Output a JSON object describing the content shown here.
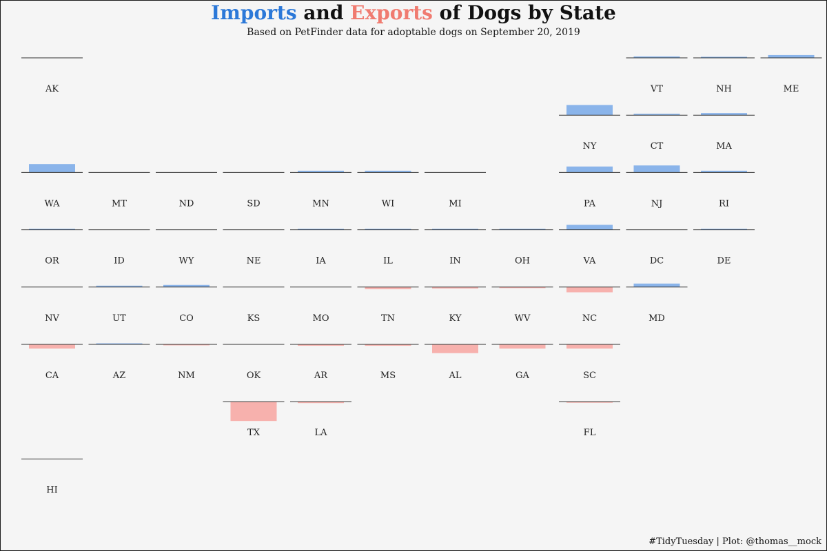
{
  "title": {
    "part1": "Imports",
    "part2": " and ",
    "part3": "Exports",
    "part4": " of Dogs by State"
  },
  "subtitle": "Based on PetFinder data for adoptable dogs on September 20, 2019",
  "caption": "#TidyTuesday | Plot: @thomas__mock",
  "colors": {
    "imports": "#8ab4ea",
    "exports": "#f7b1ad",
    "title_imports": "#2b78d8",
    "title_exports": "#f07b70",
    "baseline": "#333333",
    "background": "#f5f5f5"
  },
  "chart_data": {
    "type": "bar",
    "layout": "geofacet-us-states",
    "value_note": "net = imports minus exports (positive = imports, negative = exports)",
    "ylim": [
      -300,
      300
    ],
    "states": [
      {
        "code": "AK",
        "row": 0,
        "col": 0,
        "net": 0
      },
      {
        "code": "VT",
        "row": 0,
        "col": 9,
        "net": 4
      },
      {
        "code": "NH",
        "row": 0,
        "col": 10,
        "net": 3
      },
      {
        "code": "ME",
        "row": 0,
        "col": 11,
        "net": 8
      },
      {
        "code": "NY",
        "row": 1,
        "col": 8,
        "net": 29
      },
      {
        "code": "CT",
        "row": 1,
        "col": 9,
        "net": 4
      },
      {
        "code": "MA",
        "row": 1,
        "col": 10,
        "net": 6
      },
      {
        "code": "WA",
        "row": 2,
        "col": 0,
        "net": 24
      },
      {
        "code": "MT",
        "row": 2,
        "col": 1,
        "net": 0
      },
      {
        "code": "ND",
        "row": 2,
        "col": 2,
        "net": 0
      },
      {
        "code": "SD",
        "row": 2,
        "col": 3,
        "net": 0
      },
      {
        "code": "MN",
        "row": 2,
        "col": 4,
        "net": 5
      },
      {
        "code": "WI",
        "row": 2,
        "col": 5,
        "net": 5
      },
      {
        "code": "MI",
        "row": 2,
        "col": 6,
        "net": 0
      },
      {
        "code": "PA",
        "row": 2,
        "col": 8,
        "net": 17
      },
      {
        "code": "NJ",
        "row": 2,
        "col": 9,
        "net": 20
      },
      {
        "code": "RI",
        "row": 2,
        "col": 10,
        "net": 5
      },
      {
        "code": "OR",
        "row": 3,
        "col": 0,
        "net": 1
      },
      {
        "code": "ID",
        "row": 3,
        "col": 1,
        "net": 0
      },
      {
        "code": "WY",
        "row": 3,
        "col": 2,
        "net": 0
      },
      {
        "code": "NE",
        "row": 3,
        "col": 3,
        "net": 0
      },
      {
        "code": "IA",
        "row": 3,
        "col": 4,
        "net": 1
      },
      {
        "code": "IL",
        "row": 3,
        "col": 5,
        "net": 1
      },
      {
        "code": "IN",
        "row": 3,
        "col": 6,
        "net": 1
      },
      {
        "code": "OH",
        "row": 3,
        "col": 7,
        "net": 2
      },
      {
        "code": "VA",
        "row": 3,
        "col": 8,
        "net": 14
      },
      {
        "code": "DC",
        "row": 3,
        "col": 9,
        "net": 0
      },
      {
        "code": "DE",
        "row": 3,
        "col": 10,
        "net": 2
      },
      {
        "code": "NV",
        "row": 4,
        "col": 0,
        "net": 0
      },
      {
        "code": "UT",
        "row": 4,
        "col": 1,
        "net": 4
      },
      {
        "code": "CO",
        "row": 4,
        "col": 2,
        "net": 6
      },
      {
        "code": "KS",
        "row": 4,
        "col": 3,
        "net": 0
      },
      {
        "code": "MO",
        "row": 4,
        "col": 4,
        "net": 0
      },
      {
        "code": "TN",
        "row": 4,
        "col": 5,
        "net": -6
      },
      {
        "code": "KY",
        "row": 4,
        "col": 6,
        "net": -4
      },
      {
        "code": "WV",
        "row": 4,
        "col": 7,
        "net": -3
      },
      {
        "code": "NC",
        "row": 4,
        "col": 8,
        "net": -15
      },
      {
        "code": "MD",
        "row": 4,
        "col": 9,
        "net": 10
      },
      {
        "code": "CA",
        "row": 5,
        "col": 0,
        "net": -12
      },
      {
        "code": "AZ",
        "row": 5,
        "col": 1,
        "net": 1
      },
      {
        "code": "NM",
        "row": 5,
        "col": 2,
        "net": -1
      },
      {
        "code": "OK",
        "row": 5,
        "col": 3,
        "net": 0
      },
      {
        "code": "AR",
        "row": 5,
        "col": 4,
        "net": -4
      },
      {
        "code": "MS",
        "row": 5,
        "col": 5,
        "net": -4
      },
      {
        "code": "AL",
        "row": 5,
        "col": 6,
        "net": -25
      },
      {
        "code": "GA",
        "row": 5,
        "col": 7,
        "net": -12
      },
      {
        "code": "SC",
        "row": 5,
        "col": 8,
        "net": -12
      },
      {
        "code": "TX",
        "row": 6,
        "col": 3,
        "net": -55
      },
      {
        "code": "LA",
        "row": 6,
        "col": 4,
        "net": -4
      },
      {
        "code": "FL",
        "row": 6,
        "col": 8,
        "net": -3
      },
      {
        "code": "HI",
        "row": 7,
        "col": 0,
        "net": 0
      }
    ]
  }
}
